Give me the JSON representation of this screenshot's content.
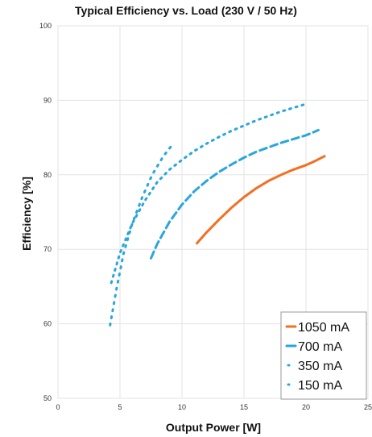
{
  "chart_data": {
    "type": "line",
    "title": "Typical Efficiency vs. Load (230 V / 50 Hz)",
    "xlabel": "Output Power [W]",
    "ylabel": "Efficiency [%]",
    "xlim": [
      0,
      25
    ],
    "ylim": [
      50,
      100
    ],
    "xticks": [
      0,
      5,
      10,
      15,
      20,
      25
    ],
    "yticks": [
      50,
      60,
      70,
      80,
      90,
      100
    ],
    "grid": true,
    "legend_position": "bottom-right",
    "series": [
      {
        "name": "1050 mA",
        "color": "#f36f21",
        "style": "solid",
        "x": [
          11.2,
          12,
          13,
          14,
          15,
          16,
          17,
          18,
          19,
          20,
          20.8,
          21.5
        ],
        "y": [
          70.8,
          72.3,
          74.0,
          75.6,
          77.0,
          78.2,
          79.2,
          80.0,
          80.7,
          81.3,
          81.9,
          82.5
        ]
      },
      {
        "name": "700 mA",
        "color": "#2aa6dd",
        "style": "dashed",
        "x": [
          7.5,
          8,
          9,
          10,
          11,
          12,
          13,
          14,
          15,
          16,
          17,
          18,
          19,
          20,
          21
        ],
        "y": [
          68.8,
          70.7,
          73.7,
          76.0,
          77.8,
          79.2,
          80.4,
          81.4,
          82.3,
          83.1,
          83.7,
          84.3,
          84.8,
          85.3,
          86.0
        ]
      },
      {
        "name": "350 mA",
        "color": "#2aa6dd",
        "style": "dotted",
        "x": [
          4.3,
          5,
          6,
          7,
          8,
          9,
          10,
          11,
          12,
          13,
          14,
          15,
          16,
          17,
          18,
          19,
          20
        ],
        "y": [
          65.5,
          69.5,
          73.5,
          76.5,
          79.0,
          80.7,
          82.0,
          83.2,
          84.2,
          85.1,
          85.9,
          86.6,
          87.3,
          87.9,
          88.5,
          89.0,
          89.5
        ]
      },
      {
        "name": "150 mA",
        "color": "#2aa6dd",
        "style": "dotted-sparse",
        "x": [
          4.2,
          4.7,
          5.3,
          6,
          6.8,
          7.6,
          8.5,
          9.3
        ],
        "y": [
          59.8,
          64.5,
          69.5,
          73.5,
          77.0,
          80.0,
          82.5,
          84.2
        ]
      }
    ]
  }
}
